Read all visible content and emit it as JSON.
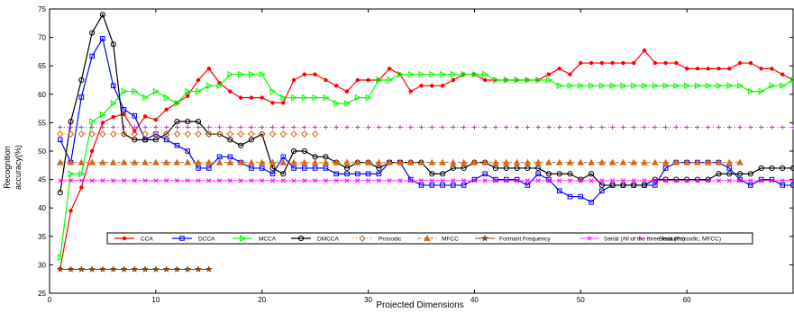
{
  "chart_data": {
    "type": "line",
    "xlabel": "Projected Dimensions",
    "ylabel_lines": [
      "Recognition",
      "accuracy(%)"
    ],
    "xlim": [
      0,
      70
    ],
    "ylim": [
      25,
      75
    ],
    "x_ticks": [
      0,
      10,
      20,
      30,
      40,
      50,
      60
    ],
    "y_ticks": [
      25,
      30,
      35,
      40,
      45,
      50,
      55,
      60,
      65,
      70,
      75
    ],
    "grid": false,
    "legend_position": "lower-center",
    "series": [
      {
        "name": "CCA",
        "color": "#ff0000",
        "marker": "dot",
        "x": [
          1,
          2,
          3,
          4,
          5,
          6,
          7,
          8,
          9,
          10,
          11,
          12,
          13,
          14,
          15,
          16,
          17,
          18,
          19,
          20,
          21,
          22,
          23,
          24,
          25,
          26,
          27,
          28,
          29,
          30,
          31,
          32,
          33,
          34,
          35,
          36,
          37,
          38,
          39,
          40,
          41,
          42,
          43,
          44,
          45,
          46,
          47,
          48,
          49,
          50,
          51,
          52,
          53,
          54,
          55,
          56,
          57,
          58,
          59,
          60,
          61,
          62,
          63,
          64,
          65,
          66,
          67,
          68,
          69,
          70
        ],
        "y": [
          29.3,
          39.5,
          43.6,
          50,
          55,
          56,
          56.5,
          53.5,
          56.1,
          55.5,
          57.3,
          58.5,
          59.7,
          62.5,
          64.5,
          62,
          60.5,
          59.4,
          59.4,
          59.4,
          58.5,
          58.5,
          62.5,
          63.5,
          63.5,
          62.5,
          61.5,
          60.5,
          62.5,
          62.5,
          62.5,
          64.5,
          63.5,
          60.5,
          61.5,
          61.5,
          61.5,
          62.5,
          63.5,
          63.5,
          62.5,
          62.5,
          62.5,
          62.5,
          62.5,
          62.5,
          63.5,
          64.5,
          63.5,
          65.5,
          65.5,
          65.5,
          65.5,
          65.5,
          65.5,
          67.7,
          65.5,
          65.5,
          65.5,
          64.5,
          64.5,
          64.5,
          64.5,
          64.5,
          65.5,
          65.5,
          64.5,
          64.5,
          63.5,
          62.5
        ]
      },
      {
        "name": "DCCA",
        "color": "#0000ff",
        "marker": "square",
        "x": [
          1,
          2,
          3,
          4,
          5,
          6,
          7,
          8,
          9,
          10,
          11,
          12,
          13,
          14,
          15,
          16,
          17,
          18,
          19,
          20,
          21,
          22,
          23,
          24,
          25,
          26,
          27,
          28,
          29,
          30,
          31,
          32,
          33,
          34,
          35,
          36,
          37,
          38,
          39,
          40,
          41,
          42,
          43,
          44,
          45,
          46,
          47,
          48,
          49,
          50,
          51,
          52,
          53,
          54,
          55,
          56,
          57,
          58,
          59,
          60,
          61,
          62,
          63,
          64,
          65,
          66,
          67,
          68,
          69,
          70
        ],
        "y": [
          52,
          48,
          59.5,
          66.7,
          69.8,
          61.5,
          57.3,
          56.2,
          52,
          53,
          52,
          51,
          50,
          47,
          47,
          49,
          49,
          48,
          47,
          47,
          46,
          49,
          47,
          47,
          47,
          47,
          46,
          46,
          46,
          46,
          46,
          48,
          48,
          45,
          44,
          44,
          44,
          44,
          44,
          45,
          46,
          45,
          45,
          45,
          44,
          46,
          45,
          43,
          42,
          42,
          41,
          43,
          44,
          44,
          44,
          44,
          44,
          47,
          48,
          48,
          48,
          48,
          48,
          47,
          45,
          44,
          45,
          45,
          44,
          44
        ]
      },
      {
        "name": "MCCA",
        "color": "#00ff00",
        "marker": "triangle-right",
        "x": [
          1,
          2,
          3,
          4,
          5,
          6,
          7,
          8,
          9,
          10,
          11,
          12,
          13,
          14,
          15,
          16,
          17,
          18,
          19,
          20,
          21,
          22,
          23,
          24,
          25,
          26,
          27,
          28,
          29,
          30,
          31,
          32,
          33,
          34,
          35,
          36,
          37,
          38,
          39,
          40,
          41,
          42,
          43,
          44,
          45,
          46,
          47,
          48,
          49,
          50,
          51,
          52,
          53,
          54,
          55,
          56,
          57,
          58,
          59,
          60,
          61,
          62,
          63,
          64,
          65,
          66,
          67,
          68,
          69,
          70
        ],
        "y": [
          31.3,
          46,
          46,
          55.2,
          56.4,
          58.4,
          60.5,
          60.5,
          59.4,
          60.5,
          59.4,
          58.4,
          60.5,
          60.5,
          61.5,
          61.5,
          63.5,
          63.5,
          63.5,
          63.5,
          60.5,
          59.4,
          59.4,
          59.4,
          59.4,
          59.4,
          58.4,
          58.4,
          59.4,
          59.4,
          62.5,
          62.5,
          63.5,
          63.5,
          63.5,
          63.5,
          63.5,
          63.5,
          63.5,
          63.5,
          63.5,
          62.5,
          62.5,
          62.5,
          62.5,
          62.5,
          62.5,
          61.5,
          61.5,
          61.5,
          61.5,
          61.5,
          61.5,
          61.5,
          61.5,
          61.5,
          61.5,
          61.5,
          61.5,
          61.5,
          61.5,
          61.5,
          61.5,
          61.5,
          61.5,
          60.5,
          60.5,
          61.5,
          61.5,
          62.5
        ]
      },
      {
        "name": "DMCCA",
        "color": "#000000",
        "marker": "circle",
        "x": [
          1,
          2,
          3,
          4,
          5,
          6,
          7,
          8,
          9,
          10,
          11,
          12,
          13,
          14,
          15,
          16,
          17,
          18,
          19,
          20,
          21,
          22,
          23,
          24,
          25,
          26,
          27,
          28,
          29,
          30,
          31,
          32,
          33,
          34,
          35,
          36,
          37,
          38,
          39,
          40,
          41,
          42,
          43,
          44,
          45,
          46,
          47,
          48,
          49,
          50,
          51,
          52,
          53,
          54,
          55,
          56,
          57,
          58,
          59,
          60,
          61,
          62,
          63,
          64,
          65,
          66,
          67,
          68,
          69,
          70
        ],
        "y": [
          42.7,
          55.2,
          62.5,
          70.8,
          74,
          68.8,
          53,
          52,
          52,
          52,
          53,
          55.2,
          55.2,
          55.2,
          53,
          53,
          52,
          51,
          52,
          53,
          47,
          46,
          50,
          50,
          49,
          49,
          48,
          47,
          48,
          48,
          47,
          48,
          48,
          48,
          48,
          46,
          46,
          47,
          47,
          48,
          48,
          47,
          47,
          47,
          47,
          47,
          46,
          46,
          46,
          45,
          46,
          44,
          44,
          44,
          44,
          44,
          45,
          45,
          45,
          45,
          45,
          45,
          46,
          46,
          46,
          46,
          47,
          47,
          47,
          47
        ]
      },
      {
        "name": "Prosodic",
        "color": "#d2691e",
        "marker": "diamond",
        "x": [
          1,
          2,
          3,
          4,
          5,
          6,
          7,
          8,
          9,
          10,
          11,
          12,
          13,
          14,
          15,
          16,
          17,
          18,
          19,
          20,
          21,
          22,
          23,
          24,
          25
        ],
        "y": [
          53,
          53,
          53,
          53,
          53,
          53,
          53,
          53,
          53,
          53,
          53,
          53,
          53,
          53,
          53,
          53,
          53,
          53,
          53,
          53,
          53,
          53,
          53,
          53,
          53
        ]
      },
      {
        "name": "MFCC",
        "color": "#d2691e",
        "marker": "triangle-up",
        "x": [
          1,
          2,
          3,
          4,
          5,
          6,
          7,
          8,
          9,
          10,
          11,
          12,
          13,
          14,
          15,
          16,
          17,
          18,
          19,
          20,
          21,
          22,
          23,
          24,
          25,
          26,
          27,
          28,
          29,
          30,
          31,
          32,
          33,
          34,
          35,
          36,
          37,
          38,
          39,
          40,
          41,
          42,
          43,
          44,
          45,
          46,
          47,
          48,
          49,
          50,
          51,
          52,
          53,
          54,
          55,
          56,
          57,
          58,
          59,
          60,
          61,
          62,
          63,
          64,
          65
        ],
        "y": [
          48,
          48,
          48,
          48,
          48,
          48,
          48,
          48,
          48,
          48,
          48,
          48,
          48,
          48,
          48,
          48,
          48,
          48,
          48,
          48,
          48,
          48,
          48,
          48,
          48,
          48,
          48,
          48,
          48,
          48,
          48,
          48,
          48,
          48,
          48,
          48,
          48,
          48,
          48,
          48,
          48,
          48,
          48,
          48,
          48,
          48,
          48,
          48,
          48,
          48,
          48,
          48,
          48,
          48,
          48,
          48,
          48,
          48,
          48,
          48,
          48,
          48,
          48,
          48,
          48
        ]
      },
      {
        "name": "Formant Frequency",
        "color": "#8b4513",
        "marker": "star",
        "x": [
          1,
          2,
          3,
          4,
          5,
          6,
          7,
          8,
          9,
          10,
          11,
          12,
          13,
          14,
          15
        ],
        "y": [
          29.2,
          29.2,
          29.2,
          29.2,
          29.2,
          29.2,
          29.2,
          29.2,
          29.2,
          29.2,
          29.2,
          29.2,
          29.2,
          29.2,
          29.2
        ]
      },
      {
        "name": "Serial (All of the three features)",
        "color": "#ff00ff",
        "marker": "x",
        "x": [
          1,
          2,
          3,
          4,
          5,
          6,
          7,
          8,
          9,
          10,
          11,
          12,
          13,
          14,
          15,
          16,
          17,
          18,
          19,
          20,
          21,
          22,
          23,
          24,
          25,
          26,
          27,
          28,
          29,
          30,
          31,
          32,
          33,
          34,
          35,
          36,
          37,
          38,
          39,
          40,
          41,
          42,
          43,
          44,
          45,
          46,
          47,
          48,
          49,
          50,
          51,
          52,
          53,
          54,
          55,
          56,
          57,
          58,
          59,
          60,
          61,
          62,
          63,
          64,
          65,
          66,
          67,
          68,
          69,
          70
        ],
        "y": [
          44.8,
          44.8,
          44.8,
          44.8,
          44.8,
          44.8,
          44.8,
          44.8,
          44.8,
          44.8,
          44.8,
          44.8,
          44.8,
          44.8,
          44.8,
          44.8,
          44.8,
          44.8,
          44.8,
          44.8,
          44.8,
          44.8,
          44.8,
          44.8,
          44.8,
          44.8,
          44.8,
          44.8,
          44.8,
          44.8,
          44.8,
          44.8,
          44.8,
          44.8,
          44.8,
          44.8,
          44.8,
          44.8,
          44.8,
          44.8,
          44.8,
          44.8,
          44.8,
          44.8,
          44.8,
          44.8,
          44.8,
          44.8,
          44.8,
          44.8,
          44.8,
          44.8,
          44.8,
          44.8,
          44.8,
          44.8,
          44.8,
          44.8,
          44.8,
          44.8,
          44.8,
          44.8,
          44.8,
          44.8,
          44.8,
          44.8,
          44.8,
          44.8,
          44.8,
          44.8
        ]
      },
      {
        "name": "Seria (Prosodic, MFCC)",
        "color": "#cc33cc",
        "marker": "plus",
        "x": [
          1,
          2,
          3,
          4,
          5,
          6,
          7,
          8,
          9,
          10,
          11,
          12,
          13,
          14,
          15,
          16,
          17,
          18,
          19,
          20,
          21,
          22,
          23,
          24,
          25,
          26,
          27,
          28,
          29,
          30,
          31,
          32,
          33,
          34,
          35,
          36,
          37,
          38,
          39,
          40,
          41,
          42,
          43,
          44,
          45,
          46,
          47,
          48,
          49,
          50,
          51,
          52,
          53,
          54,
          55,
          56,
          57,
          58,
          59,
          60,
          61,
          62,
          63,
          64,
          65,
          66,
          67,
          68,
          69,
          70
        ],
        "y": [
          54.2,
          54.2,
          54.2,
          54.2,
          54.2,
          54.2,
          54.2,
          54.2,
          54.2,
          54.2,
          54.2,
          54.2,
          54.2,
          54.2,
          54.2,
          54.2,
          54.2,
          54.2,
          54.2,
          54.2,
          54.2,
          54.2,
          54.2,
          54.2,
          54.2,
          54.2,
          54.2,
          54.2,
          54.2,
          54.2,
          54.2,
          54.2,
          54.2,
          54.2,
          54.2,
          54.2,
          54.2,
          54.2,
          54.2,
          54.2,
          54.2,
          54.2,
          54.2,
          54.2,
          54.2,
          54.2,
          54.2,
          54.2,
          54.2,
          54.2,
          54.2,
          54.2,
          54.2,
          54.2,
          54.2,
          54.2,
          54.2,
          54.2,
          54.2,
          54.2,
          54.2,
          54.2,
          54.2,
          54.2,
          54.2,
          54.2,
          54.2,
          54.2,
          54.2,
          54.2
        ]
      }
    ]
  }
}
